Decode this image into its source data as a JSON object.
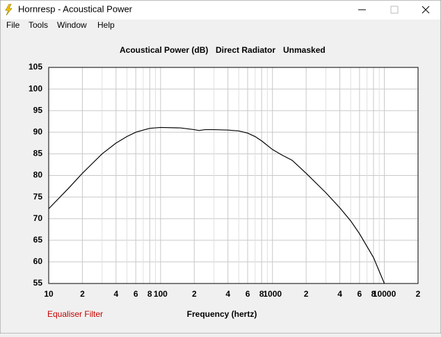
{
  "window": {
    "title": "Hornresp - Acoustical Power"
  },
  "menu": {
    "items": [
      "File",
      "Tools",
      "Window",
      "Help"
    ]
  },
  "chart_data": {
    "type": "line",
    "title": "Acoustical Power (dB)",
    "subtitle": "Direct Radiator",
    "annotation": "Unmasked",
    "filter_label": "Equaliser Filter",
    "xlabel": "Frequency (hertz)",
    "xscale": "log",
    "grid": true,
    "color": "#000000",
    "x": [
      10,
      15,
      20,
      30,
      40,
      50,
      60,
      70,
      80,
      100,
      150,
      200,
      220,
      250,
      300,
      400,
      500,
      600,
      700,
      800,
      1000,
      1200,
      1500,
      2000,
      3000,
      4000,
      5000,
      6000,
      8000,
      10000
    ],
    "values": [
      72.3,
      77,
      80.5,
      85,
      87.5,
      89,
      90,
      90.5,
      90.9,
      91.1,
      91,
      90.6,
      90.4,
      90.6,
      90.6,
      90.5,
      90.3,
      89.8,
      89,
      88,
      86,
      84.8,
      83.5,
      80.5,
      76,
      72.5,
      69.5,
      66.5,
      61,
      55
    ],
    "xlim": [
      10,
      20000
    ],
    "ylim": [
      55,
      105
    ],
    "xticks": [
      10,
      {
        "value": 20,
        "label": "2"
      },
      {
        "value": 40,
        "label": "4"
      },
      {
        "value": 60,
        "label": "6"
      },
      {
        "value": 80,
        "label": "8"
      },
      100,
      {
        "value": 200,
        "label": "2"
      },
      {
        "value": 400,
        "label": "4"
      },
      {
        "value": 600,
        "label": "6"
      },
      {
        "value": 800,
        "label": "8"
      },
      1000,
      {
        "value": 2000,
        "label": "2"
      },
      {
        "value": 4000,
        "label": "4"
      },
      {
        "value": 6000,
        "label": "6"
      },
      {
        "value": 8000,
        "label": "8"
      },
      10000,
      {
        "value": 20000,
        "label": "2"
      }
    ],
    "xminor": [
      30,
      50,
      70,
      90,
      300,
      500,
      700,
      900,
      3000,
      5000,
      7000,
      9000
    ],
    "yticks": [
      55,
      60,
      65,
      70,
      75,
      80,
      85,
      90,
      95,
      100,
      105
    ]
  }
}
